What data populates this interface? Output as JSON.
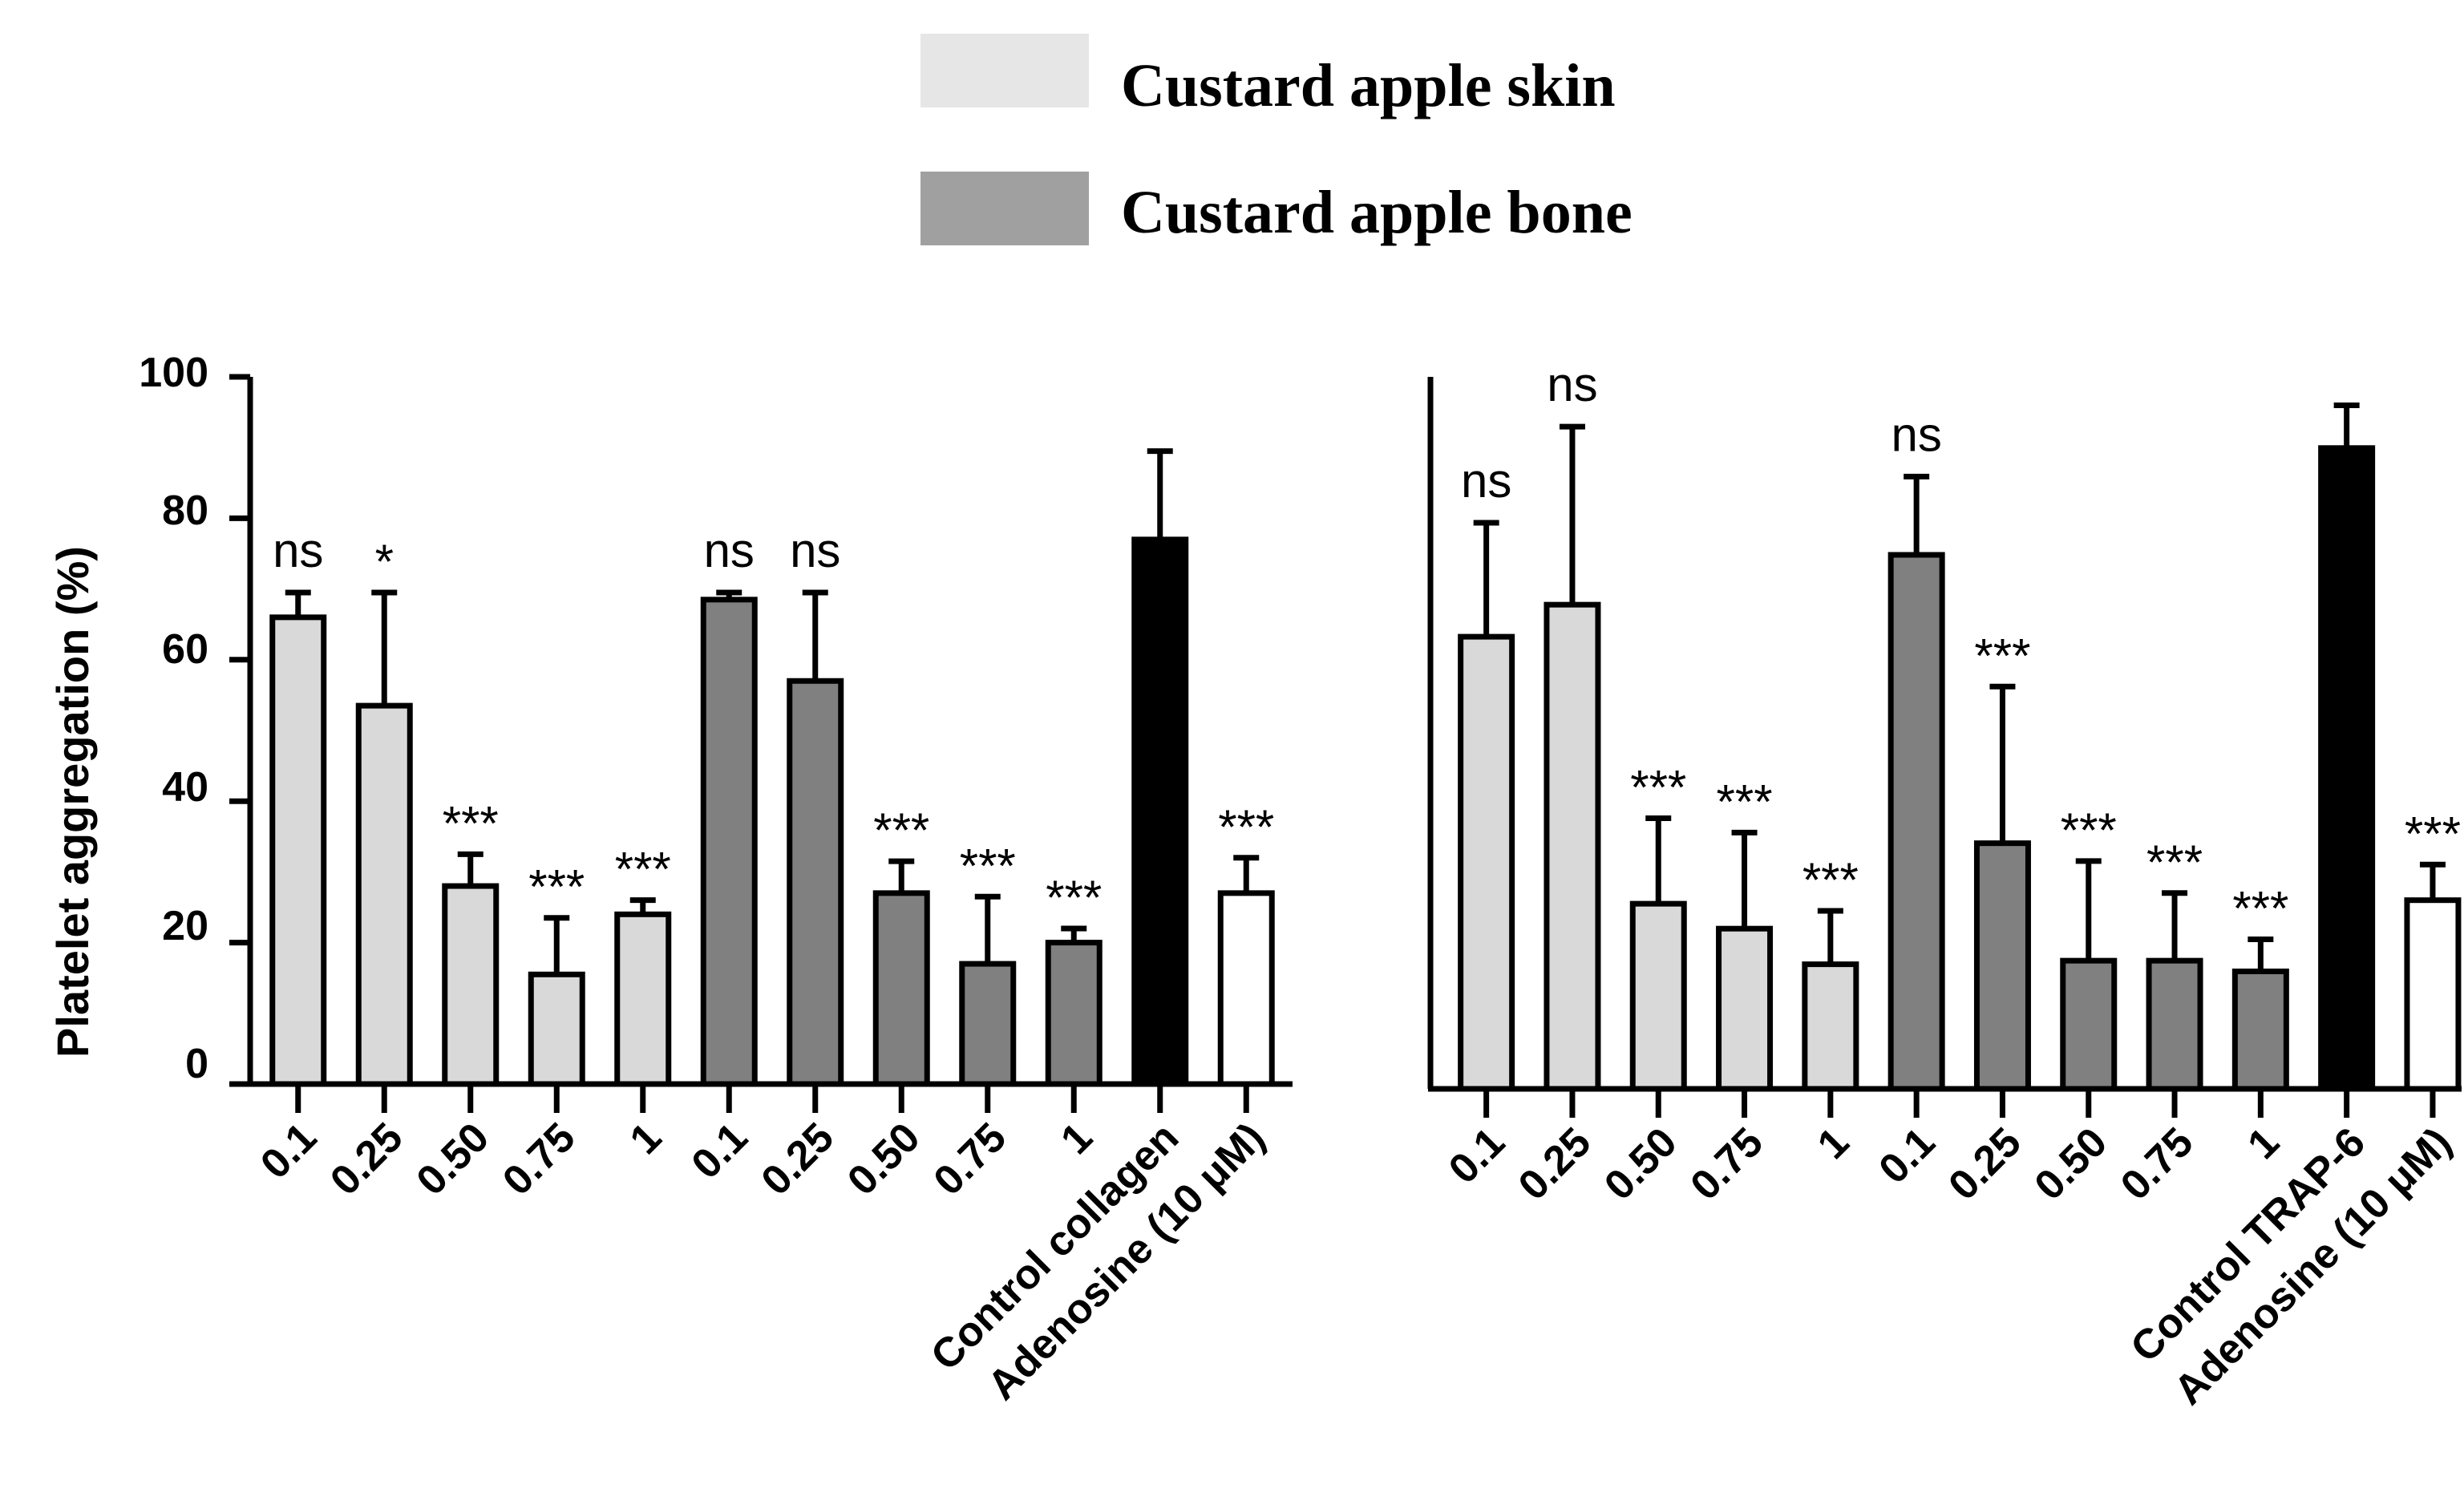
{
  "legend": {
    "items": [
      {
        "label": "Custard apple skin",
        "color": "#e6e6e6"
      },
      {
        "label": "Custard apple bone",
        "color": "#a0a0a0"
      }
    ]
  },
  "chart_data": [
    {
      "type": "bar",
      "ylabel": "Platelet aggregation (%)",
      "ylim": [
        0,
        100
      ],
      "yticks": [
        "0",
        "20",
        "40",
        "60",
        "80",
        "100"
      ],
      "categories": [
        "0.1",
        "0.25",
        "0.50",
        "0.75",
        "1",
        "0.1",
        "0.25",
        "0.50",
        "0.75",
        "1",
        "Control collagen",
        "Adenosine (10 μM)"
      ],
      "values": [
        66,
        53.5,
        28,
        15.5,
        24,
        68.5,
        57,
        27,
        17,
        20,
        77,
        27
      ],
      "errors": [
        3.5,
        16,
        4.5,
        8,
        2,
        1,
        12.5,
        4.5,
        9.5,
        2,
        12.5,
        5
      ],
      "groups": [
        "skin",
        "skin",
        "skin",
        "skin",
        "skin",
        "bone",
        "bone",
        "bone",
        "bone",
        "bone",
        "control",
        "adenosine"
      ],
      "significance": [
        "ns",
        "*",
        "***",
        "***",
        "***",
        "ns",
        "ns",
        "***",
        "***",
        "***",
        "",
        "***"
      ],
      "fill_colors": {
        "skin": "#d9d9d9",
        "bone": "#808080",
        "control": "#000000",
        "adenosine": "#ffffff"
      }
    },
    {
      "type": "bar",
      "ylabel": "",
      "ylim": [
        0,
        100
      ],
      "categories": [
        "0.1",
        "0.25",
        "0.50",
        "0.75",
        "1",
        "0.1",
        "0.25",
        "0.50",
        "0.75",
        "1",
        "Control TRAP-6",
        "Adenosine (10 μM)"
      ],
      "values": [
        63.5,
        68,
        26,
        22.5,
        17.5,
        75,
        34.5,
        18,
        18,
        16.5,
        90,
        26.5
      ],
      "errors": [
        16,
        25,
        12,
        13.5,
        7.5,
        11,
        22,
        14,
        9.5,
        4.5,
        6,
        5
      ],
      "groups": [
        "skin",
        "skin",
        "skin",
        "skin",
        "skin",
        "bone",
        "bone",
        "bone",
        "bone",
        "bone",
        "control",
        "adenosine"
      ],
      "significance": [
        "ns",
        "ns",
        "***",
        "***",
        "***",
        "ns",
        "***",
        "***",
        "***",
        "***",
        "",
        "***"
      ],
      "fill_colors": {
        "skin": "#d9d9d9",
        "bone": "#808080",
        "control": "#000000",
        "adenosine": "#ffffff"
      }
    }
  ]
}
